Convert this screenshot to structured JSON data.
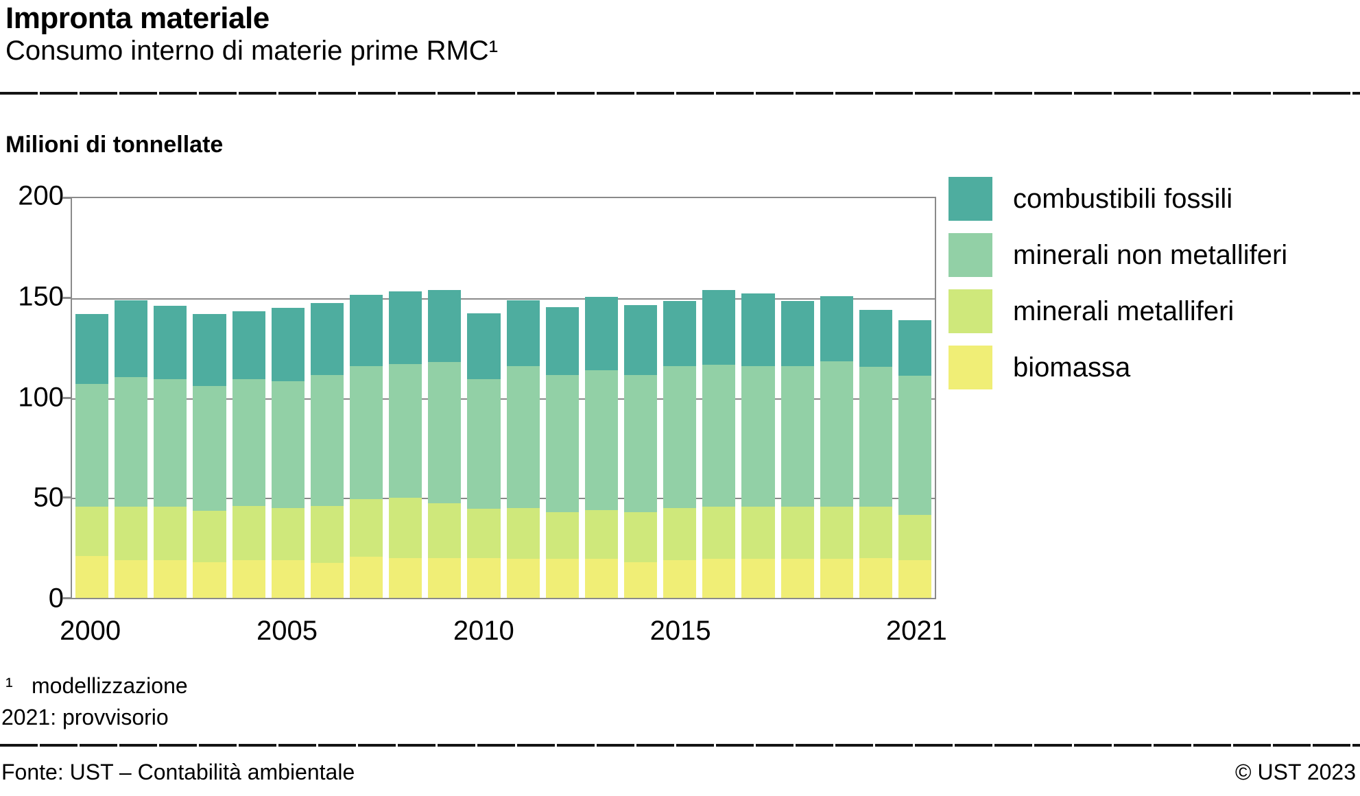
{
  "header": {
    "title": "Impronta materiale",
    "subtitle": "Consumo interno di materie prime RMC¹"
  },
  "chart": {
    "unit_label": "Milioni di tonnellate"
  },
  "chart_data": {
    "type": "bar",
    "stacked": true,
    "title": "Impronta materiale — Consumo interno di materie prime RMC",
    "ylabel": "Milioni di tonnellate",
    "xlabel": "",
    "ylim": [
      0,
      200
    ],
    "yticks": [
      0,
      50,
      100,
      150,
      200
    ],
    "grid": true,
    "legend_position": "right",
    "categories": [
      2000,
      2001,
      2002,
      2003,
      2004,
      2005,
      2006,
      2007,
      2008,
      2009,
      2010,
      2011,
      2012,
      2013,
      2014,
      2015,
      2016,
      2017,
      2018,
      2019,
      2020,
      2021
    ],
    "xtick_labels": [
      {
        "label": "2000",
        "index": 0
      },
      {
        "label": "2005",
        "index": 5
      },
      {
        "label": "2010",
        "index": 10
      },
      {
        "label": "2015",
        "index": 15
      },
      {
        "label": "2021",
        "index": 21
      }
    ],
    "series": [
      {
        "name": "biomassa",
        "color": "#F0EE76",
        "values": [
          21,
          19,
          19,
          18,
          19,
          19,
          17.5,
          20.5,
          20,
          20,
          20,
          19.5,
          19.5,
          19.5,
          18,
          19,
          19.5,
          19.5,
          19.5,
          19.5,
          20,
          19
        ]
      },
      {
        "name": "minerali metalliferi",
        "color": "#CFE87B",
        "values": [
          24.5,
          26.5,
          26.5,
          25.5,
          27,
          26,
          28.5,
          29,
          30,
          27.5,
          24.5,
          25.5,
          23.5,
          24.5,
          25,
          26,
          26,
          26,
          26,
          26,
          25.5,
          22.5
        ]
      },
      {
        "name": "minerali non metalliferi",
        "color": "#92D0A6",
        "values": [
          61.5,
          65,
          64,
          62.5,
          63.5,
          63.5,
          65.5,
          66.5,
          67,
          70.5,
          65,
          71,
          68.5,
          70,
          68.5,
          71,
          71,
          70.5,
          70.5,
          73,
          70,
          69.5
        ]
      },
      {
        "name": "combustibili fossili",
        "color": "#4EAD9F",
        "values": [
          35,
          38.5,
          36.5,
          36,
          34,
          36.5,
          36,
          35.5,
          36.5,
          36,
          33,
          33,
          34,
          36.5,
          35,
          32.5,
          37.5,
          36.5,
          32.5,
          32.5,
          28.5,
          28
        ]
      }
    ],
    "totals": [
      142,
      149,
      146,
      142,
      143.5,
      145,
      147.5,
      151.5,
      153.5,
      154,
      142.5,
      149,
      145.5,
      150.5,
      146.5,
      148.5,
      154,
      152.5,
      148.5,
      151,
      144,
      139
    ]
  },
  "legend_order": [
    "combustibili fossili",
    "minerali non metalliferi",
    "minerali metalliferi",
    "biomassa"
  ],
  "footnotes": {
    "marker": "¹",
    "line1": "modellizzazione",
    "line2": "2021: provvisorio"
  },
  "footer": {
    "source": "Fonte: UST – Contabilità ambientale",
    "copyright": "© UST 2023"
  },
  "colors": {
    "axis": "#8a8a8a",
    "text": "#000000",
    "combustibili_fossili": "#4EAD9F",
    "minerali_non_metalliferi": "#92D0A6",
    "minerali_metalliferi": "#CFE87B",
    "biomassa": "#F0EE76"
  }
}
